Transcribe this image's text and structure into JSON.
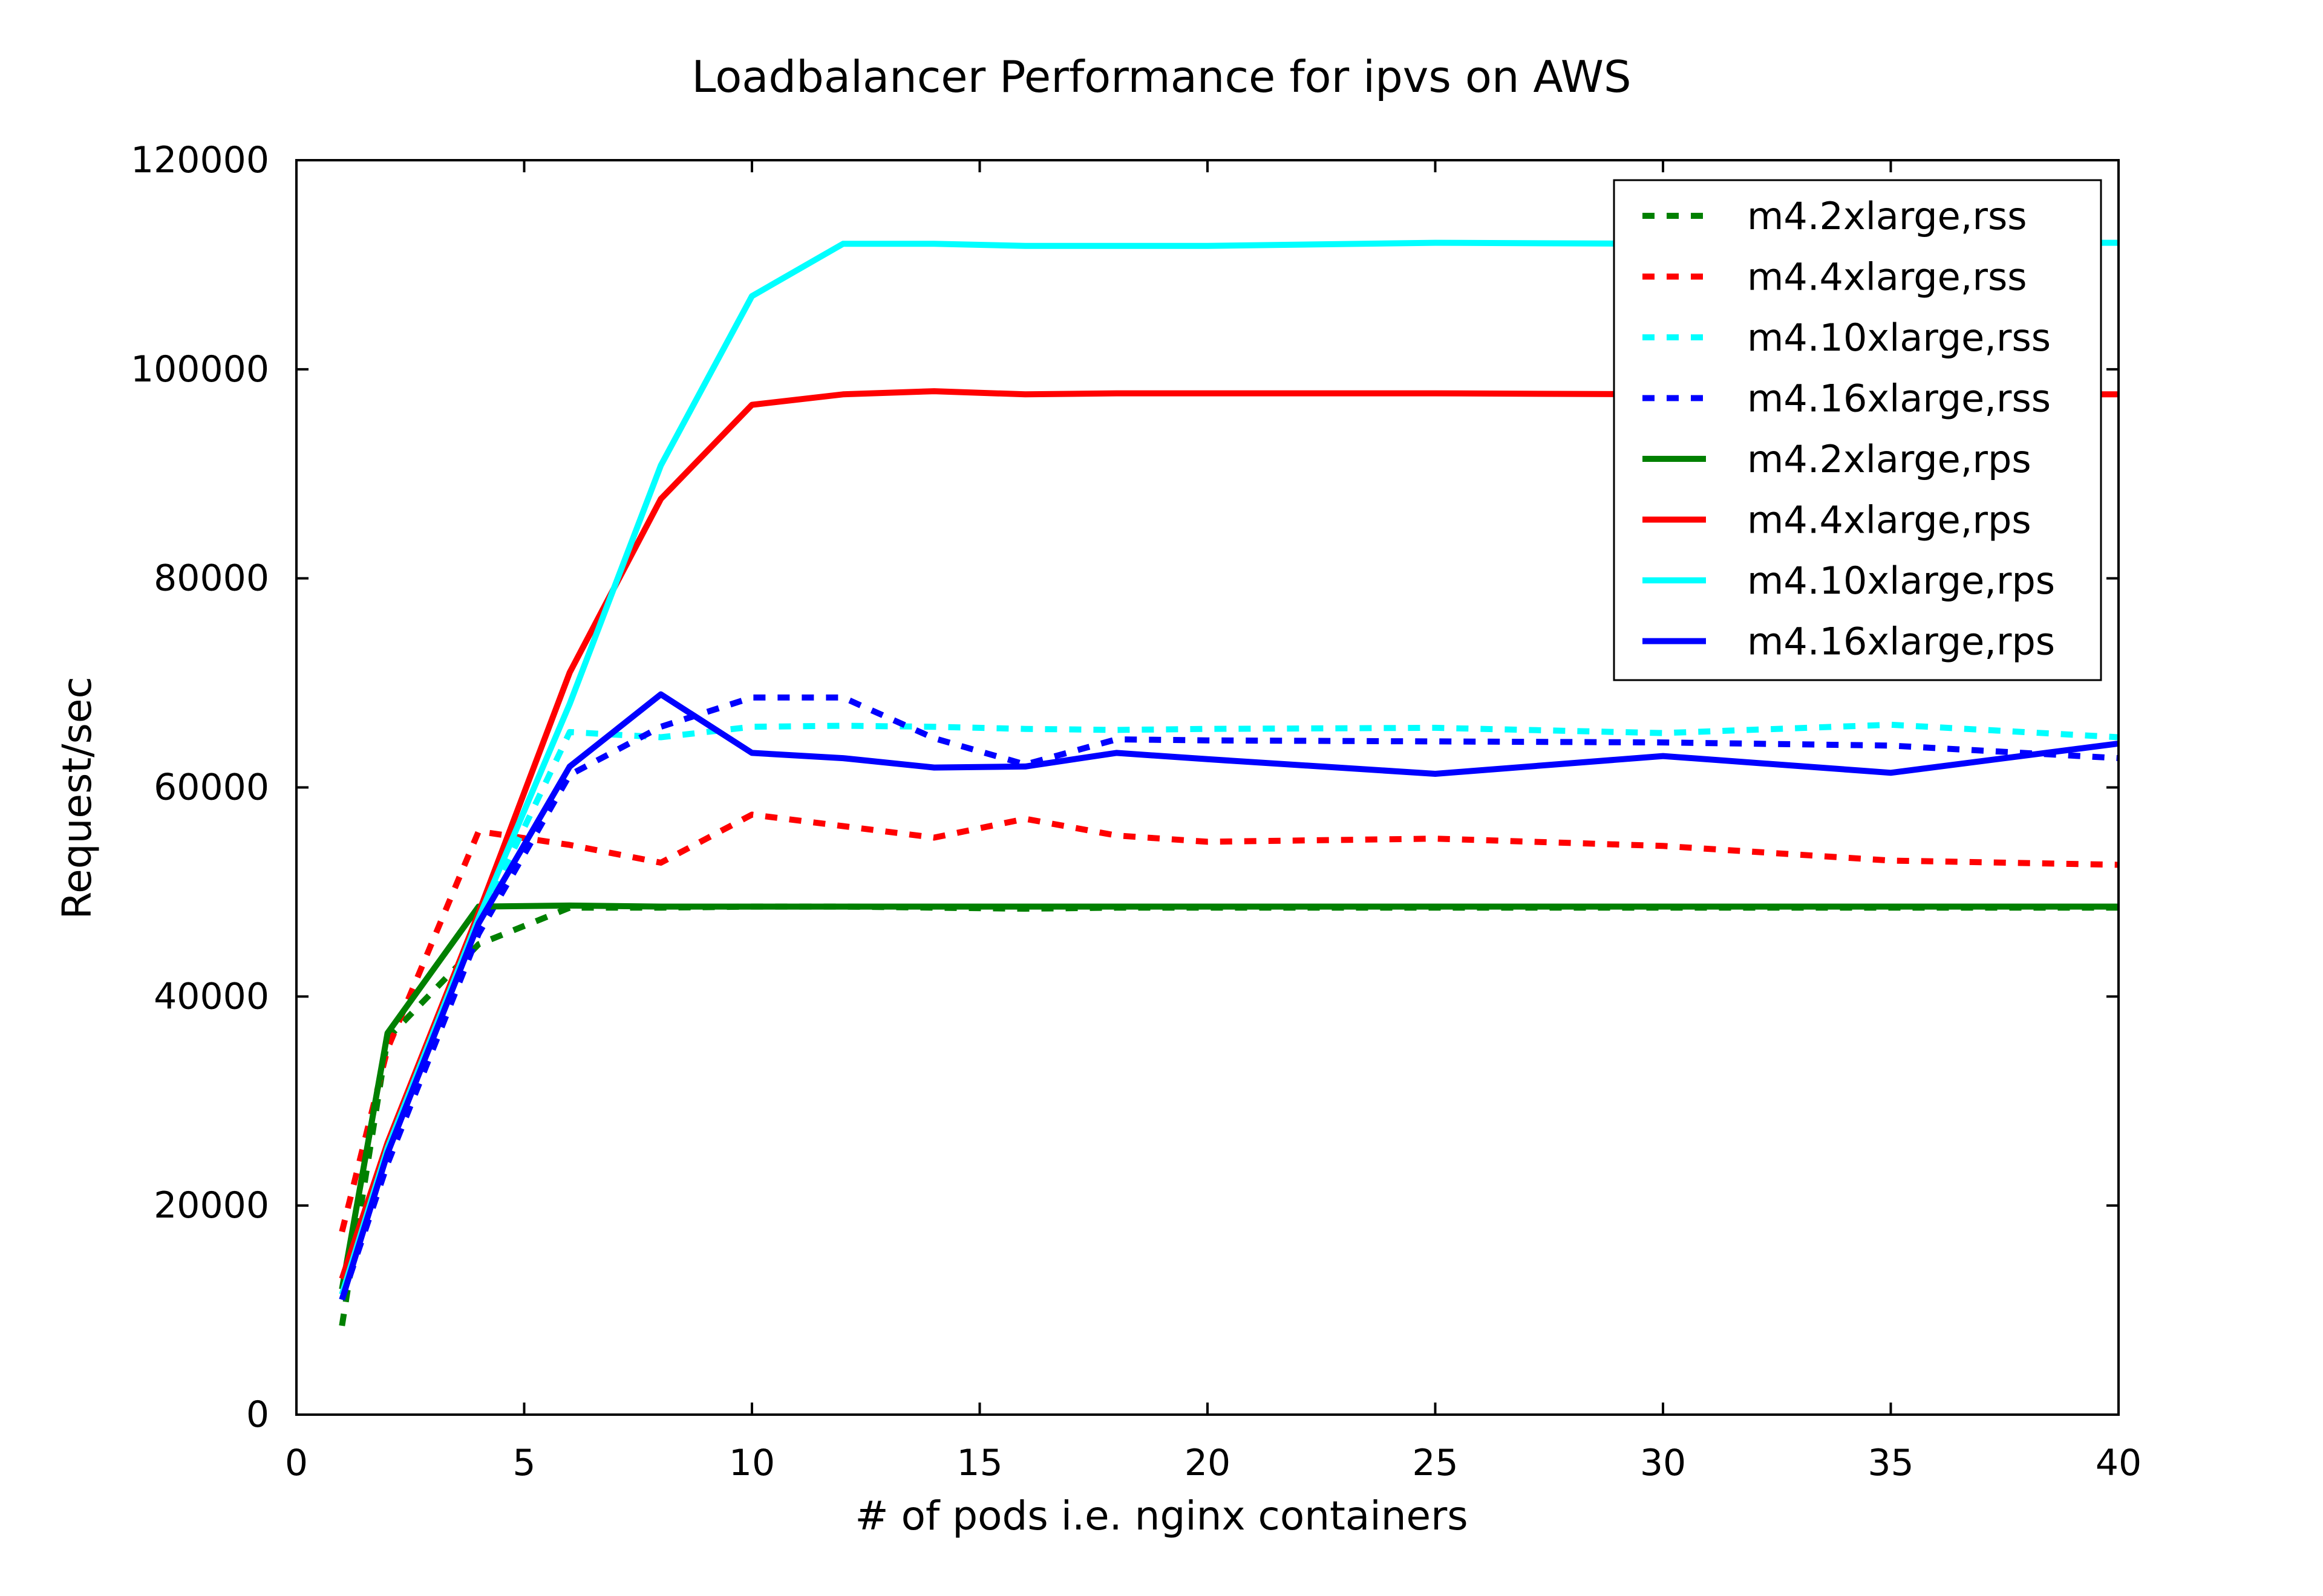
{
  "chart_data": {
    "type": "line",
    "title": "Loadbalancer Performance for ipvs on AWS",
    "xlabel": "# of pods i.e. nginx containers",
    "ylabel": "Request/sec",
    "xlim": [
      0,
      40
    ],
    "ylim": [
      0,
      120000
    ],
    "xticks": [
      0,
      5,
      10,
      15,
      20,
      25,
      30,
      35,
      40
    ],
    "yticks": [
      0,
      20000,
      40000,
      60000,
      80000,
      100000,
      120000
    ],
    "grid": false,
    "legend_position": "top-right",
    "x": [
      1,
      2,
      4,
      6,
      8,
      10,
      12,
      14,
      16,
      18,
      20,
      25,
      30,
      35,
      40
    ],
    "series": [
      {
        "name": "m4.2xlarge,rss",
        "color": "#008000",
        "dash": true,
        "values": [
          8500,
          36000,
          45000,
          48500,
          48500,
          48600,
          48600,
          48500,
          48400,
          48500,
          48500,
          48500,
          48500,
          48500,
          48500
        ]
      },
      {
        "name": "m4.4xlarge,rss",
        "color": "#ff0000",
        "dash": true,
        "values": [
          17500,
          35000,
          55800,
          54500,
          52800,
          57400,
          56300,
          55200,
          57000,
          55400,
          54800,
          55100,
          54400,
          53000,
          52600
        ]
      },
      {
        "name": "m4.10xlarge,rss",
        "color": "#00ffff",
        "dash": true,
        "values": [
          11000,
          25000,
          47000,
          65300,
          64800,
          65800,
          65900,
          65800,
          65600,
          65500,
          65600,
          65700,
          65200,
          66000,
          64800
        ]
      },
      {
        "name": "m4.16xlarge,rss",
        "color": "#0000ff",
        "dash": true,
        "values": [
          11000,
          24000,
          46000,
          61200,
          65800,
          68600,
          68600,
          64700,
          62200,
          64600,
          64500,
          64400,
          64300,
          64000,
          62800
        ]
      },
      {
        "name": "m4.2xlarge,rps",
        "color": "#008000",
        "dash": false,
        "values": [
          12000,
          36500,
          48600,
          48700,
          48600,
          48600,
          48600,
          48600,
          48600,
          48600,
          48600,
          48600,
          48600,
          48600,
          48600
        ]
      },
      {
        "name": "m4.4xlarge,rps",
        "color": "#ff0000",
        "dash": false,
        "values": [
          13000,
          26000,
          48000,
          71000,
          87600,
          96600,
          97600,
          97900,
          97600,
          97700,
          97700,
          97700,
          97600,
          97600,
          97600
        ]
      },
      {
        "name": "m4.10xlarge,rps",
        "color": "#00ffff",
        "dash": false,
        "values": [
          11500,
          25500,
          47500,
          68000,
          90800,
          107000,
          112000,
          112000,
          111800,
          111800,
          111800,
          112100,
          112000,
          112100,
          112100
        ]
      },
      {
        "name": "m4.16xlarge,rps",
        "color": "#0000ff",
        "dash": false,
        "values": [
          11000,
          25000,
          47000,
          62000,
          68900,
          63300,
          62800,
          61900,
          62000,
          63300,
          62700,
          61300,
          63000,
          61400,
          64200
        ]
      }
    ]
  }
}
